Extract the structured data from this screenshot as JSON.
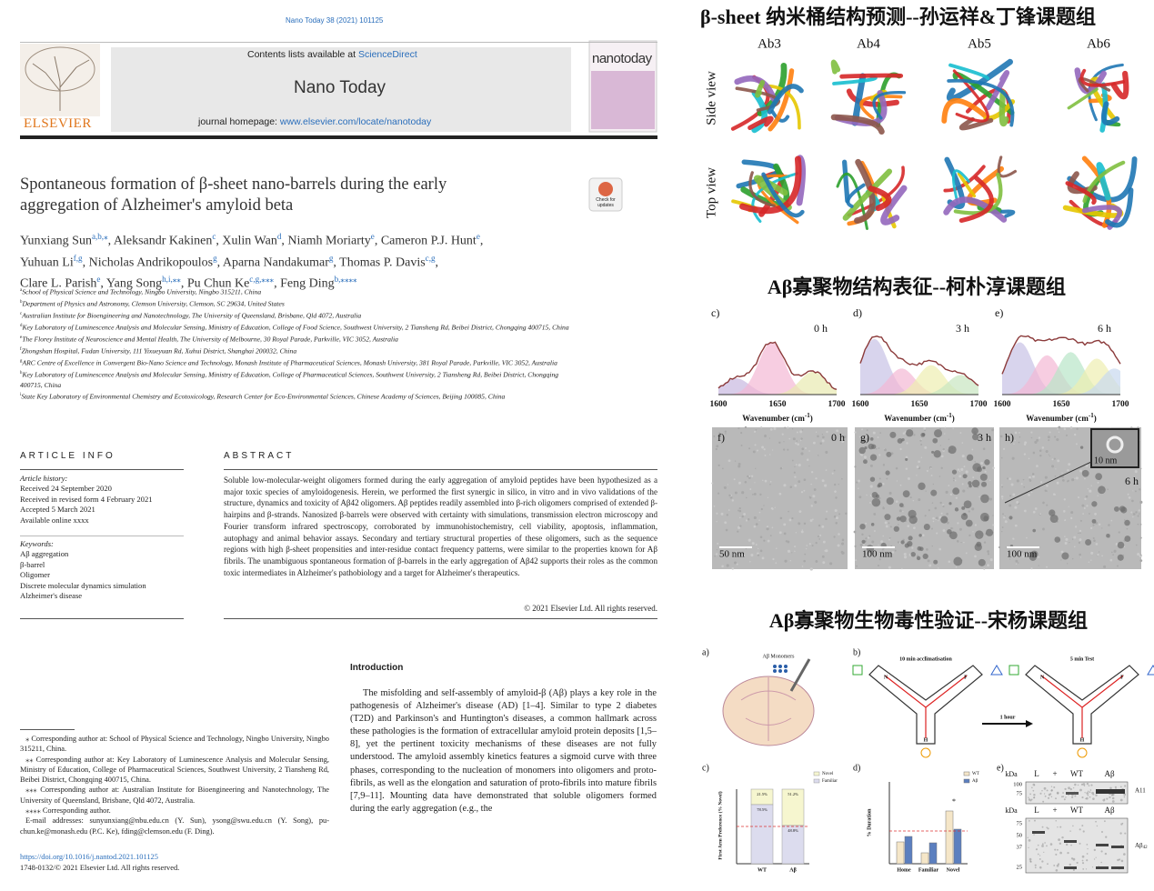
{
  "header": {
    "journal_ref": "Nano Today 38 (2021) 101125",
    "publisher": "ELSEVIER",
    "contents_prefix": "Contents lists available at ",
    "contents_link": "ScienceDirect",
    "journal": "Nano Today",
    "homepage_prefix": "journal homepage: ",
    "homepage_link": "www.elsevier.com/locate/nanotoday",
    "cover_title": "nanotoday",
    "check_updates": "Check for updates"
  },
  "article": {
    "title_lines": [
      "Spontaneous formation of β-sheet nano-barrels during the early",
      "aggregation of Alzheimer's amyloid beta"
    ],
    "authors": [
      [
        {
          "text": "Yunxiang Sun",
          "sup": "a,b,⁎"
        },
        {
          "text": ", Aleksandr Kakinen",
          "sup": "c"
        },
        {
          "text": ", Xulin Wan",
          "sup": "d"
        },
        {
          "text": ", Niamh Moriarty",
          "sup": "e"
        },
        {
          "text": ", Cameron P.J. Hunt",
          "sup": "e"
        },
        {
          "text": ","
        }
      ],
      [
        {
          "text": "Yuhuan Li",
          "sup": "f,g"
        },
        {
          "text": ", Nicholas Andrikopoulos",
          "sup": "g"
        },
        {
          "text": ", Aparna Nandakumar",
          "sup": "g"
        },
        {
          "text": ", Thomas P. Davis",
          "sup": "c,g"
        },
        {
          "text": ","
        }
      ],
      [
        {
          "text": "Clare L. Parish",
          "sup": "e"
        },
        {
          "text": ", Yang Song",
          "sup": "h,i,⁎⁎"
        },
        {
          "text": ", Pu Chun Ke",
          "sup": "c,g,⁎⁎⁎"
        },
        {
          "text": ", Feng Ding",
          "sup": "b,⁎⁎⁎⁎"
        }
      ]
    ],
    "affiliations": [
      {
        "mark": "a",
        "text": "School of Physical Science and Technology, Ningbo University, Ningbo 315211, China"
      },
      {
        "mark": "b",
        "text": "Department of Physics and Astronomy, Clemson University, Clemson, SC 29634, United States"
      },
      {
        "mark": "c",
        "text": "Australian Institute for Bioengineering and Nanotechnology, The University of Queensland, Brisbane, Qld 4072, Australia"
      },
      {
        "mark": "d",
        "text": "Key Laboratory of Luminescence Analysis and Molecular Sensing, Ministry of Education, College of Food Science, Southwest University, 2 Tiansheng Rd, Beibei District, Chongqing 400715, China"
      },
      {
        "mark": "e",
        "text": "The Florey Institute of Neuroscience and Mental Health, The University of Melbourne, 30 Royal Parade, Parkville, VIC 3052, Australia"
      },
      {
        "mark": "f",
        "text": "Zhongshan Hospital, Fudan University, 111 Yixueyuan Rd, Xuhui District, Shanghai 200032, China"
      },
      {
        "mark": "g",
        "text": "ARC Centre of Excellence in Convergent Bio-Nano Science and Technology, Monash Institute of Pharmaceutical Sciences, Monash University, 381 Royal Parade, Parkville, VIC 3052, Australia"
      },
      {
        "mark": "h",
        "text": "Key Laboratory of Luminescence Analysis and Molecular Sensing, Ministry of Education, College of Pharmaceutical Sciences, Southwest University, 2 Tiansheng Rd, Beibei District, Chongqing 400715, China"
      },
      {
        "mark": "i",
        "text": "State Key Laboratory of Environmental Chemistry and Ecotoxicology, Research Center for Eco-Environmental Sciences, Chinese Academy of Sciences, Beijing 100085, China"
      }
    ]
  },
  "article_info": {
    "heading": "ARTICLE INFO",
    "history_heading": "Article history:",
    "history": [
      "Received 24 September 2020",
      "Received in revised form 4 February 2021",
      "Accepted 5 March 2021",
      "Available online xxxx"
    ],
    "keywords_heading": "Keywords:",
    "keywords": [
      "Aβ aggregation",
      "β-barrel",
      "Oligomer",
      "Discrete molecular dynamics simulation",
      "Alzheimer's disease"
    ]
  },
  "abstract": {
    "heading": "ABSTRACT",
    "text": "Soluble low-molecular-weight oligomers formed during the early aggregation of amyloid peptides have been hypothesized as a major toxic species of amyloidogenesis. Herein, we performed the first synergic in silico, in vitro and in vivo validations of the structure, dynamics and toxicity of Aβ42 oligomers. Aβ peptides readily assembled into β-rich oligomers comprised of extended β-hairpins and β-strands. Nanosized β-barrels were observed with certainty with simulations, transmission electron microscopy and Fourier transform infrared spectroscopy, corroborated by immunohistochemistry, cell viability, apoptosis, inflammation, autophagy and animal behavior assays. Secondary and tertiary structural properties of these oligomers, such as the sequence regions with high β-sheet propensities and inter-residue contact frequency patterns, were similar to the properties known for Aβ fibrils. The unambiguous spontaneous formation of β-barrels in the early aggregation of Aβ42 supports their roles as the common toxic intermediates in Alzheimer's pathobiology and a target for Alzheimer's therapeutics.",
    "copyright": "© 2021 Elsevier Ltd. All rights reserved."
  },
  "introduction": {
    "heading": "Introduction",
    "text": "The misfolding and self-assembly of amyloid-β (Aβ) plays a key role in the pathogenesis of Alzheimer's disease (AD) [1–4]. Similar to type 2 diabetes (T2D) and Parkinson's and Huntington's diseases, a common hallmark across these pathologies is the formation of extracellular amyloid protein deposits [1,5–8], yet the pertinent toxicity mechanisms of these diseases are not fully understood. The amyloid assembly kinetics features a sigmoid curve with three phases, corresponding to the nucleation of monomers into oligomers and proto-fibrils, as well as the elongation and saturation of proto-fibrils into mature fibrils [7,9–11]. Mounting data have demonstrated that soluble oligomers formed during the early aggregation (e.g., the"
  },
  "footnotes": [
    "⁎ Corresponding author at: School of Physical Science and Technology, Ningbo University, Ningbo 315211, China.",
    "⁎⁎ Corresponding author at: Key Laboratory of Luminescence Analysis and Molecular Sensing, Ministry of Education, College of Pharmaceutical Sciences, Southwest University, 2 Tiansheng Rd, Beibei District, Chongqing 400715, China.",
    "⁎⁎⁎ Corresponding author at: Australian Institute for Bioengineering and Nanotechnology, The University of Queensland, Brisbane, Qld 4072, Australia.",
    "⁎⁎⁎⁎ Corresponding author.",
    "E-mail addresses: sunyunxiang@nbu.edu.cn (Y. Sun), ysong@swu.edu.cn (Y. Song), pu-chun.ke@monash.edu (P.C. Ke), fding@clemson.edu (F. Ding)."
  ],
  "doi": "https://doi.org/10.1016/j.nantod.2021.101125",
  "issn": "1748-0132/© 2021 Elsevier Ltd. All rights reserved.",
  "figure": {
    "section1": {
      "heading": "β-sheet 纳米桶结构预测--孙运祥&丁锋课题组",
      "columns": [
        "Ab3",
        "Ab4",
        "Ab5",
        "Ab6"
      ],
      "rows": [
        "Side view",
        "Top view"
      ]
    },
    "section2": {
      "heading": "Aβ寡聚物结构表征--柯朴淳课题组",
      "spectra": [
        {
          "panel": "c)",
          "time": "0 h"
        },
        {
          "panel": "d)",
          "time": "3 h"
        },
        {
          "panel": "e)",
          "time": "6 h"
        }
      ],
      "xticks": [
        "1600",
        "1650",
        "1700"
      ],
      "xlabel": "Wavenumber (cm",
      "xlabel_sup": "-1",
      "xlabel_end": ")",
      "tem": [
        {
          "panel": "f)",
          "time": "0 h",
          "scale": "50 nm"
        },
        {
          "panel": "g)",
          "time": "3 h",
          "scale": "100 nm"
        },
        {
          "panel": "h)",
          "time": "6 h",
          "scale": "100 nm",
          "inset_scale": "10 nm"
        }
      ]
    },
    "section3": {
      "heading": "Aβ寡聚物生物毒性验证--宋杨课题组",
      "panel_a": {
        "label": "a)",
        "monomers": "Aβ Monomers"
      },
      "panel_b": {
        "label": "b)",
        "stage1": "10 min acclimatisation",
        "arrow": "1 hour",
        "stage2": "5 min Test",
        "arms": [
          "N",
          "F",
          "H"
        ]
      },
      "panel_c": {
        "label": "c)",
        "y_label": "First Arm Preference (% Novel)",
        "legend": [
          "Novel",
          "Familiar"
        ],
        "categories": [
          "WT",
          "Aβ"
        ],
        "novel_labels": [
          "21.5%",
          "51.2%"
        ],
        "familiar_labels": [
          "78.5%",
          "48.8%"
        ]
      },
      "panel_d": {
        "label": "d)",
        "y_label": "% Duration",
        "legend": [
          "WT",
          "Aβ"
        ],
        "categories": [
          "Home",
          "Familiar",
          "Novel"
        ],
        "significance": "*"
      },
      "panel_e": {
        "label": "e)",
        "top": {
          "kda": "kDa",
          "lanes": [
            "L",
            "+",
            "WT",
            "Aβ"
          ],
          "markers": [
            "100",
            "75"
          ],
          "antibody": "A11"
        },
        "bottom": {
          "kda": "kDa",
          "lanes": [
            "L",
            "+",
            "WT",
            "Aβ"
          ],
          "markers": [
            "75",
            "50",
            "37",
            "25"
          ],
          "antibody": "Aβ",
          "antibody_sub": "42"
        }
      }
    }
  }
}
